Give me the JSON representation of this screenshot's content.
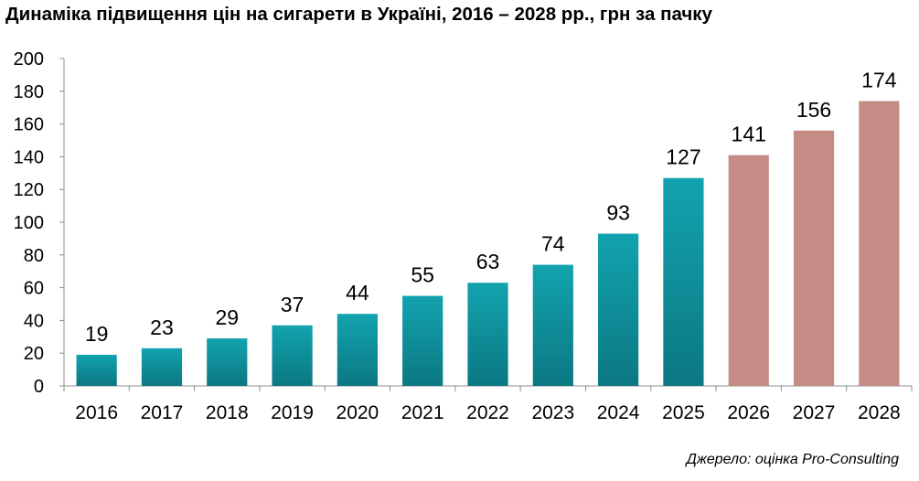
{
  "chart_data": {
    "type": "bar",
    "title": "Динаміка підвищення цін на сигарети в Україні, 2016 – 2028 рр., грн за пачку",
    "categories": [
      "2016",
      "2017",
      "2018",
      "2019",
      "2020",
      "2021",
      "2022",
      "2023",
      "2024",
      "2025",
      "2026",
      "2027",
      "2028"
    ],
    "values": [
      19,
      23,
      29,
      37,
      44,
      55,
      63,
      74,
      93,
      127,
      141,
      156,
      174
    ],
    "forecast_from_index": 10,
    "xlabel": "",
    "ylabel": "",
    "ylim": [
      0,
      200
    ],
    "yticks": [
      0,
      20,
      40,
      60,
      80,
      100,
      120,
      140,
      160,
      180,
      200
    ],
    "grid": false,
    "legend": "none",
    "colors": {
      "actual_top": "#12A3AE",
      "actual_bottom": "#0B7883",
      "forecast": "#C58C86"
    }
  },
  "source": "Джерело: оцінка Pro-Consulting"
}
